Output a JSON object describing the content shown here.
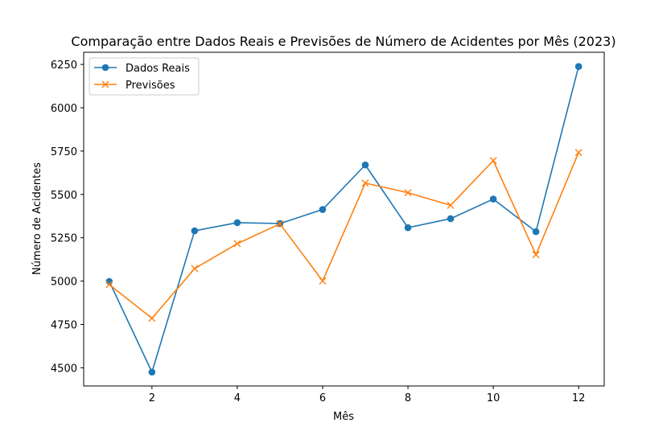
{
  "chart_data": {
    "type": "line",
    "title": "Comparação entre Dados Reais e Previsões de Número de Acidentes por Mês (2023)",
    "xlabel": "Mês",
    "ylabel": "Número de Acidentes",
    "x": [
      1,
      2,
      3,
      4,
      5,
      6,
      7,
      8,
      9,
      10,
      11,
      12
    ],
    "xlim": [
      0.4,
      12.6
    ],
    "ylim": [
      4395,
      6320
    ],
    "xticks": [
      2,
      4,
      6,
      8,
      10,
      12
    ],
    "yticks": [
      4500,
      4750,
      5000,
      5250,
      5500,
      5750,
      6000,
      6250
    ],
    "grid": false,
    "legend_position": "top-left",
    "series": [
      {
        "name": "Dados Reais",
        "color": "#1f77b4",
        "marker": "circle",
        "values": [
          4998,
          4475,
          5290,
          5337,
          5332,
          5413,
          5670,
          5308,
          5360,
          5473,
          5285,
          6238
        ]
      },
      {
        "name": "Previsões",
        "color": "#ff7f0e",
        "marker": "x",
        "values": [
          4980,
          4785,
          5072,
          5216,
          5330,
          5001,
          5565,
          5510,
          5437,
          5695,
          5152,
          5742
        ]
      }
    ]
  }
}
